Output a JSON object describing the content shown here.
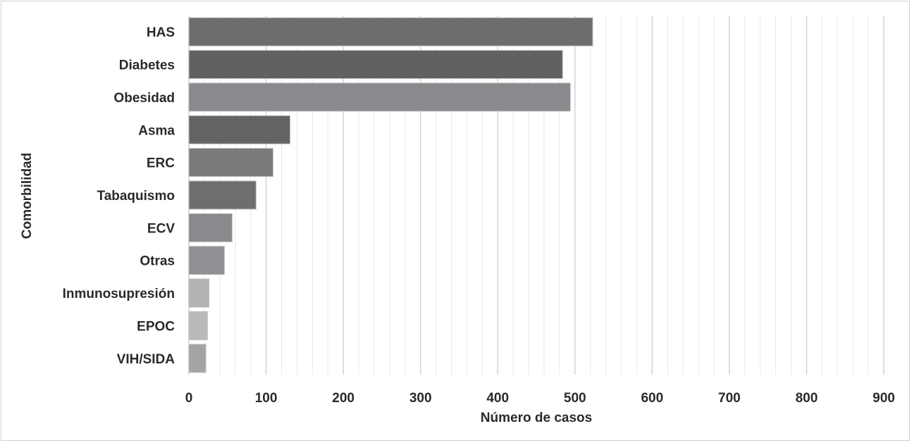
{
  "chart_data": {
    "type": "bar",
    "orientation": "horizontal",
    "title": "",
    "xlabel": "Número de casos",
    "ylabel": "Comorbilidad",
    "xlim": [
      0,
      900
    ],
    "xticks": [
      "0",
      "100",
      "200",
      "300",
      "400",
      "500",
      "600",
      "700",
      "800",
      "900"
    ],
    "grid": true,
    "categories": [
      "HAS",
      "Diabetes",
      "Obesidad",
      "Asma",
      "ERC",
      "Tabaquismo",
      "ECV",
      "Otras",
      "Inmunosupresión",
      "EPOC",
      "VIH/SIDA"
    ],
    "values": [
      523,
      484,
      494,
      131,
      109,
      87,
      56,
      46,
      26,
      24,
      22
    ],
    "colors": [
      "#6d6d6f",
      "#616163",
      "#8a8a8e",
      "#646466",
      "#7a7a7c",
      "#6e6e70",
      "#8a8a8e",
      "#909094",
      "#b4b4b6",
      "#bababc",
      "#a4a4a6"
    ]
  }
}
